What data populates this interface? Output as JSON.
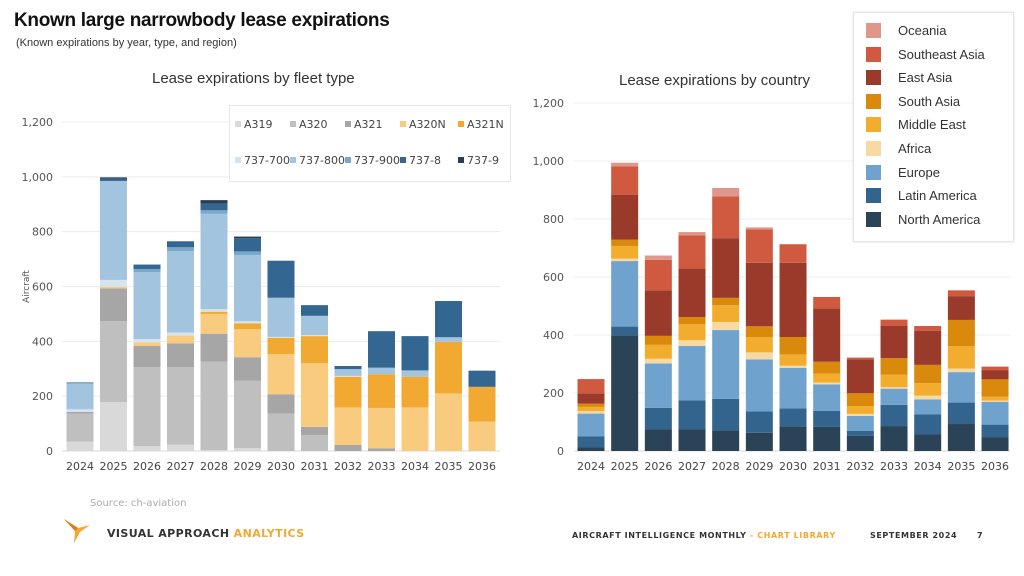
{
  "header": {
    "title": "Known large narrowbody lease expirations",
    "subtitle": "(Known expirations by year, type, and region)"
  },
  "footer": {
    "source": "Source: ch-aviation",
    "brand_main": "VISUAL APPROACH",
    "brand_accent": "ANALYTICS",
    "publication": "AIRCRAFT INTELLIGENCE MONTHLY",
    "separator": " - ",
    "section": "CHART LIBRARY",
    "date": "SEPTEMBER 2024",
    "page": "7",
    "accent_color": "#f2a931"
  },
  "chart_data": [
    {
      "type": "bar",
      "stacked": true,
      "title": "Lease expirations by fleet type",
      "xlabel": "",
      "ylabel": "Aircraft",
      "ylim": [
        0,
        1200
      ],
      "yticks": [
        0,
        200,
        400,
        600,
        800,
        1000,
        1200
      ],
      "ytick_labels": [
        "0",
        "200",
        "400",
        "600",
        "800",
        "1,000",
        "1,200"
      ],
      "grid": true,
      "legend": "top-right",
      "categories": [
        "2024",
        "2025",
        "2026",
        "2027",
        "2028",
        "2029",
        "2030",
        "2031",
        "2032",
        "2033",
        "2034",
        "2035",
        "2036"
      ],
      "series": [
        {
          "name": "A319",
          "color": "#d9d9d9",
          "values": [
            34,
            178,
            18,
            23,
            3,
            11,
            0,
            0,
            0,
            0,
            0,
            0,
            0
          ]
        },
        {
          "name": "A320",
          "color": "#bfbfbf",
          "values": [
            103,
            296,
            288,
            283,
            323,
            245,
            137,
            58,
            0,
            0,
            0,
            0,
            0
          ]
        },
        {
          "name": "A321",
          "color": "#a6a6a6",
          "values": [
            6,
            119,
            77,
            87,
            102,
            86,
            70,
            30,
            22,
            10,
            0,
            0,
            0
          ]
        },
        {
          "name": "A320N",
          "color": "#f8cb7f",
          "values": [
            0,
            6,
            13,
            28,
            72,
            102,
            146,
            232,
            137,
            147,
            159,
            210,
            107
          ]
        },
        {
          "name": "A321N",
          "color": "#f2a931",
          "values": [
            0,
            0,
            0,
            0,
            8,
            22,
            60,
            99,
            112,
            123,
            112,
            188,
            127
          ]
        },
        {
          "name": "737-700",
          "color": "#d6e4ef",
          "values": [
            9,
            25,
            12,
            11,
            9,
            7,
            3,
            4,
            3,
            0,
            0,
            0,
            0
          ]
        },
        {
          "name": "737-800",
          "color": "#a3c4de",
          "values": [
            95,
            361,
            244,
            297,
            348,
            242,
            143,
            70,
            25,
            24,
            23,
            17,
            0
          ]
        },
        {
          "name": "737-900",
          "color": "#7aa8cc",
          "values": [
            0,
            0,
            12,
            14,
            13,
            13,
            0,
            0,
            0,
            0,
            0,
            0,
            0
          ]
        },
        {
          "name": "737-8",
          "color": "#336690",
          "values": [
            3,
            8,
            16,
            22,
            25,
            48,
            135,
            39,
            11,
            133,
            125,
            132,
            59
          ]
        },
        {
          "name": "737-9",
          "color": "#263d52",
          "values": [
            0,
            5,
            0,
            0,
            12,
            6,
            0,
            0,
            0,
            0,
            0,
            0,
            0
          ]
        }
      ]
    },
    {
      "type": "bar",
      "stacked": true,
      "title": "Lease expirations by country",
      "xlabel": "",
      "ylabel": "",
      "ylim": [
        0,
        1200
      ],
      "yticks": [
        0,
        200,
        400,
        600,
        800,
        1000,
        1200
      ],
      "ytick_labels": [
        "0",
        "200",
        "400",
        "600",
        "800",
        "1,000",
        "1,200"
      ],
      "grid": true,
      "legend": "top-right",
      "categories": [
        "2024",
        "2025",
        "2026",
        "2027",
        "2028",
        "2029",
        "2030",
        "2031",
        "2032",
        "2033",
        "2034",
        "2035",
        "2036"
      ],
      "series": [
        {
          "name": "North America",
          "color": "#2b4357",
          "values": [
            12,
            399,
            74,
            74,
            71,
            63,
            85,
            83,
            52,
            86,
            57,
            93,
            48
          ]
        },
        {
          "name": "Latin America",
          "color": "#33648e",
          "values": [
            39,
            30,
            75,
            101,
            109,
            74,
            62,
            56,
            17,
            73,
            69,
            74,
            43
          ]
        },
        {
          "name": "Europe",
          "color": "#6fa3cd",
          "values": [
            78,
            226,
            153,
            187,
            237,
            179,
            140,
            91,
            52,
            56,
            52,
            105,
            78
          ]
        },
        {
          "name": "Africa",
          "color": "#f7d9a3",
          "values": [
            9,
            8,
            16,
            20,
            28,
            24,
            7,
            6,
            7,
            5,
            13,
            12,
            5
          ]
        },
        {
          "name": "Middle East",
          "color": "#f2ad2e",
          "values": [
            14,
            44,
            48,
            55,
            58,
            53,
            39,
            31,
            27,
            43,
            43,
            78,
            13
          ]
        },
        {
          "name": "South Asia",
          "color": "#d98a0d",
          "values": [
            11,
            22,
            31,
            25,
            25,
            37,
            60,
            41,
            44,
            57,
            63,
            90,
            60
          ]
        },
        {
          "name": "East Asia",
          "color": "#9a3a2b",
          "values": [
            35,
            155,
            157,
            167,
            206,
            219,
            256,
            184,
            117,
            111,
            117,
            82,
            32
          ]
        },
        {
          "name": "Southeast Asia",
          "color": "#cf5a40",
          "values": [
            50,
            98,
            105,
            115,
            144,
            115,
            64,
            39,
            6,
            22,
            17,
            20,
            12
          ]
        },
        {
          "name": "Oceania",
          "color": "#e0978b",
          "values": [
            0,
            12,
            15,
            11,
            29,
            7,
            0,
            0,
            0,
            0,
            0,
            0,
            0
          ]
        }
      ]
    }
  ]
}
